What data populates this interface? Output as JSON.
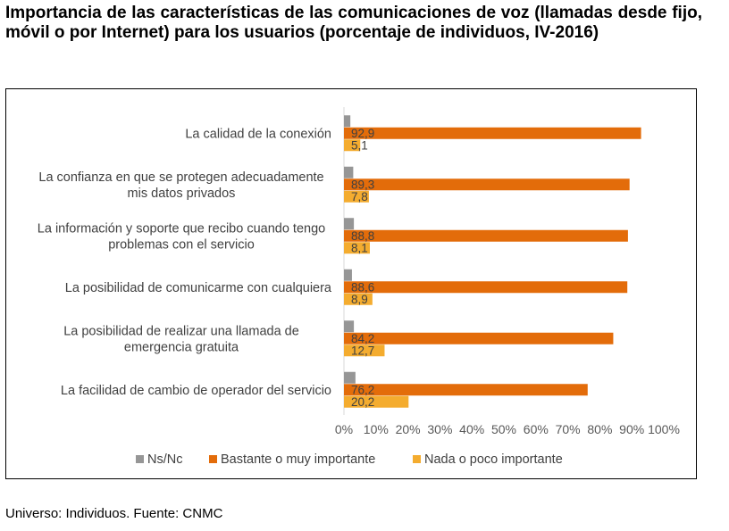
{
  "title": "Importancia de las características de las comunicaciones de voz (llamadas desde fijo, móvil o por Internet) para los usuarios (porcentaje de individuos, IV-2016)",
  "footer": "Universo: Individuos. Fuente: CNMC",
  "colors": {
    "nsnc": "#969696",
    "bastante": "#E36C0A",
    "nada": "#F4AC2F"
  },
  "chart_data": {
    "type": "bar",
    "orientation": "horizontal",
    "categories": [
      [
        "La calidad de la conexión"
      ],
      [
        "La confianza en que se protegen adecuadamente",
        "mis datos privados"
      ],
      [
        "La información y soporte que recibo cuando tengo",
        "problemas con el servicio"
      ],
      [
        "La posibilidad de comunicarme con cualquiera"
      ],
      [
        "La posibilidad de realizar una llamada de",
        "emergencia gratuita"
      ],
      [
        "La facilidad de cambio de operador del servicio"
      ]
    ],
    "series": [
      {
        "name": "Ns/Nc",
        "values": [
          2.0,
          2.9,
          3.1,
          2.5,
          3.1,
          3.6
        ],
        "labels": [
          "",
          "",
          "",
          "",
          "",
          ""
        ]
      },
      {
        "name": "Bastante o muy importante",
        "values": [
          92.9,
          89.3,
          88.8,
          88.6,
          84.2,
          76.2
        ],
        "labels": [
          "92,9",
          "89,3",
          "88,8",
          "88,6",
          "84,2",
          "76,2"
        ]
      },
      {
        "name": "Nada o poco importante",
        "values": [
          5.1,
          7.8,
          8.1,
          8.9,
          12.7,
          20.2
        ],
        "labels": [
          "5,1",
          "7,8",
          "8,1",
          "8,9",
          "12,7",
          "20,2"
        ]
      }
    ],
    "xlim": [
      0,
      100
    ],
    "x_ticks": [
      "0%",
      "10%",
      "20%",
      "30%",
      "40%",
      "50%",
      "60%",
      "70%",
      "80%",
      "90%",
      "100%"
    ],
    "legend": "bottom"
  }
}
